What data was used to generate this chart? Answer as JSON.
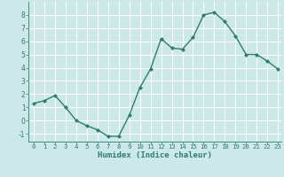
{
  "x": [
    0,
    1,
    2,
    3,
    4,
    5,
    6,
    7,
    8,
    9,
    10,
    11,
    12,
    13,
    14,
    15,
    16,
    17,
    18,
    19,
    20,
    21,
    22,
    23
  ],
  "y": [
    1.3,
    1.5,
    1.9,
    1.0,
    0.0,
    -0.4,
    -0.7,
    -1.2,
    -1.2,
    0.4,
    2.5,
    3.9,
    6.2,
    5.5,
    5.4,
    6.3,
    8.0,
    8.2,
    7.5,
    6.4,
    5.0,
    5.0,
    4.5,
    3.9
  ],
  "xlabel": "Humidex (Indice chaleur)",
  "xlim_min": -0.5,
  "xlim_max": 23.3,
  "ylim_min": -1.6,
  "ylim_max": 9.0,
  "yticks": [
    -1,
    0,
    1,
    2,
    3,
    4,
    5,
    6,
    7,
    8
  ],
  "xticks": [
    0,
    1,
    2,
    3,
    4,
    5,
    6,
    7,
    8,
    9,
    10,
    11,
    12,
    13,
    14,
    15,
    16,
    17,
    18,
    19,
    20,
    21,
    22,
    23
  ],
  "line_color": "#2e7d6e",
  "marker": "D",
  "marker_size": 2.0,
  "bg_color": "#cce8e8",
  "grid_color": "#ffffff",
  "axis_color": "#2e7d6e",
  "tick_label_color": "#2e7d6e",
  "xlabel_color": "#2e7d6e",
  "line_width": 1.0,
  "tick_fontsize": 5.2,
  "xlabel_fontsize": 6.5
}
